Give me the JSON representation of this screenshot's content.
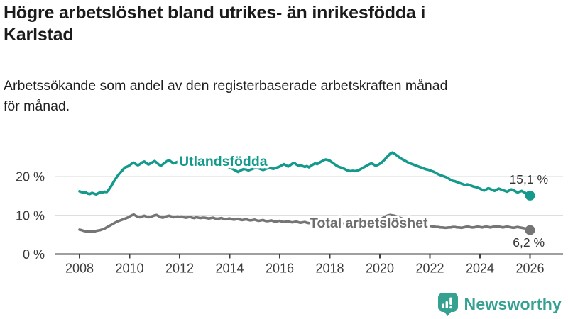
{
  "header": {
    "title_lines": [
      "Högre arbetslöshet bland utrikes- än inrikesfödda i",
      "Karlstad"
    ],
    "subtitle_lines": [
      "Arbetssökande som andel av den registerbaserade arbetskraften månad",
      "för månad."
    ]
  },
  "colors": {
    "accent_teal": "#149A8C",
    "series_gray": "#757575",
    "gray_label": "#6E6E6E",
    "title_text": "#1B1B1B",
    "axis_text": "#3B3B3B",
    "gridline": "#D9D9D9",
    "axis_line": "#3F3F3F",
    "end_value_text": "#333333",
    "logo_teal": "#35A191"
  },
  "logo": {
    "text": "Newsworthy",
    "icon": "newsworthy-pin-barchart-icon"
  },
  "chart_data": {
    "type": "line",
    "title": "Högre arbetslöshet bland utrikes- än inrikesfödda i Karlstad",
    "subtitle": "Arbetssökande som andel av den registerbaserade arbetskraften månad för månad.",
    "unit": "%",
    "frequency": "monthly",
    "x_start": {
      "year": 2008,
      "month": 1
    },
    "x_end": {
      "year": 2026,
      "month": 1
    },
    "x_tick_years": [
      2008,
      2010,
      2012,
      2014,
      2016,
      2018,
      2020,
      2022,
      2024,
      2026
    ],
    "y_ticks": [
      {
        "value": 0,
        "label": "0 %"
      },
      {
        "value": 10,
        "label": "10 %"
      },
      {
        "value": 20,
        "label": "20 %"
      }
    ],
    "ylim": [
      0,
      27
    ],
    "grid": true,
    "legend_position": "inline-labels",
    "series": [
      {
        "name": "Utlandsfödda",
        "color": "#149A8C",
        "label_color": "#149A8C",
        "end_label": "15,1 %",
        "end_value": 15.1,
        "values": [
          16.2,
          16.0,
          15.8,
          15.9,
          15.6,
          15.5,
          15.8,
          15.6,
          15.4,
          15.7,
          16.0,
          15.9,
          16.1,
          16.0,
          16.6,
          17.4,
          18.3,
          19.2,
          20.0,
          20.7,
          21.3,
          21.9,
          22.4,
          22.6,
          22.9,
          23.3,
          23.6,
          23.2,
          22.9,
          23.2,
          23.6,
          23.9,
          23.5,
          23.1,
          23.4,
          23.7,
          24.0,
          23.6,
          23.1,
          22.8,
          23.2,
          23.6,
          24.0,
          24.2,
          23.8,
          23.4,
          23.6,
          23.8,
          23.6,
          23.4,
          23.5,
          23.7,
          23.5,
          23.3,
          23.4,
          23.6,
          23.4,
          23.2,
          23.3,
          23.4,
          23.3,
          23.1,
          23.0,
          23.2,
          23.1,
          22.9,
          23.0,
          23.2,
          23.0,
          22.8,
          22.6,
          22.5,
          22.4,
          22.1,
          21.8,
          21.5,
          21.2,
          21.5,
          21.8,
          22.0,
          21.8,
          21.6,
          21.8,
          22.0,
          22.2,
          22.4,
          22.1,
          21.9,
          21.7,
          21.9,
          22.1,
          22.3,
          22.1,
          22.0,
          22.2,
          22.4,
          22.6,
          22.9,
          23.2,
          22.9,
          22.6,
          22.9,
          23.3,
          23.5,
          23.1,
          22.8,
          23.0,
          22.7,
          22.5,
          22.7,
          22.4,
          22.8,
          23.1,
          23.4,
          23.2,
          23.6,
          23.9,
          24.2,
          24.4,
          24.3,
          24.1,
          23.7,
          23.3,
          22.9,
          22.6,
          22.4,
          22.2,
          22.0,
          21.7,
          21.5,
          21.4,
          21.5,
          21.4,
          21.5,
          21.7,
          22.0,
          22.3,
          22.6,
          22.9,
          23.2,
          23.4,
          23.1,
          22.8,
          23.0,
          23.3,
          23.7,
          24.2,
          24.8,
          25.4,
          25.9,
          26.2,
          25.9,
          25.5,
          25.1,
          24.7,
          24.4,
          24.1,
          23.8,
          23.5,
          23.3,
          23.1,
          22.9,
          22.7,
          22.5,
          22.3,
          22.1,
          21.9,
          21.8,
          21.6,
          21.4,
          21.2,
          20.9,
          20.6,
          20.4,
          20.2,
          20.0,
          19.8,
          19.5,
          19.1,
          18.9,
          18.8,
          18.6,
          18.4,
          18.2,
          18.0,
          17.8,
          18.0,
          17.8,
          17.6,
          17.4,
          17.3,
          17.1,
          16.9,
          16.6,
          16.4,
          16.7,
          17.0,
          16.8,
          16.5,
          16.3,
          16.6,
          16.9,
          16.7,
          16.5,
          16.3,
          16.1,
          16.4,
          16.7,
          16.5,
          16.2,
          15.9,
          16.1,
          16.3,
          16.0,
          15.7,
          15.4,
          15.1
        ]
      },
      {
        "name": "Total arbetslöshet",
        "color": "#757575",
        "label_color": "#6E6E6E",
        "end_label": "6,2 %",
        "end_value": 6.2,
        "values": [
          6.3,
          6.2,
          6.0,
          5.9,
          5.8,
          5.8,
          5.9,
          5.8,
          6.0,
          6.1,
          6.2,
          6.4,
          6.6,
          6.9,
          7.2,
          7.5,
          7.8,
          8.1,
          8.4,
          8.6,
          8.8,
          9.0,
          9.2,
          9.4,
          9.7,
          10.0,
          10.2,
          9.9,
          9.6,
          9.5,
          9.7,
          9.9,
          9.7,
          9.5,
          9.6,
          9.8,
          10.0,
          10.1,
          9.8,
          9.5,
          9.4,
          9.6,
          9.8,
          9.9,
          9.7,
          9.5,
          9.6,
          9.7,
          9.6,
          9.7,
          9.5,
          9.4,
          9.5,
          9.6,
          9.4,
          9.3,
          9.5,
          9.4,
          9.3,
          9.4,
          9.4,
          9.3,
          9.2,
          9.3,
          9.4,
          9.2,
          9.1,
          9.2,
          9.3,
          9.1,
          9.0,
          9.1,
          9.2,
          9.0,
          8.9,
          9.0,
          9.1,
          8.9,
          8.8,
          8.9,
          9.0,
          8.8,
          8.7,
          8.8,
          8.9,
          8.7,
          8.6,
          8.7,
          8.8,
          8.6,
          8.5,
          8.6,
          8.7,
          8.5,
          8.4,
          8.5,
          8.6,
          8.4,
          8.3,
          8.4,
          8.5,
          8.3,
          8.2,
          8.3,
          8.4,
          8.2,
          8.1,
          8.2,
          8.3,
          8.1,
          8.0,
          8.1,
          8.2,
          8.0,
          7.9,
          8.0,
          8.1,
          7.9,
          7.8,
          7.9,
          8.0,
          7.9,
          7.8,
          7.9,
          8.0,
          7.9,
          7.8,
          7.9,
          8.0,
          7.9,
          7.8,
          7.9,
          8.0,
          7.9,
          7.8,
          7.9,
          8.0,
          8.1,
          8.2,
          8.3,
          8.4,
          8.5,
          8.6,
          8.8,
          9.0,
          9.2,
          9.5,
          9.8,
          10.0,
          10.1,
          10.0,
          9.9,
          9.7,
          9.5,
          9.3,
          9.1,
          8.9,
          8.7,
          8.5,
          8.3,
          8.1,
          8.0,
          7.9,
          7.8,
          7.7,
          7.6,
          7.5,
          7.4,
          7.3,
          7.2,
          7.1,
          7.0,
          7.0,
          6.9,
          6.9,
          6.8,
          6.8,
          6.9,
          6.9,
          7.0,
          7.0,
          6.9,
          6.9,
          6.8,
          6.9,
          7.0,
          7.1,
          7.0,
          6.9,
          6.9,
          7.0,
          7.1,
          7.0,
          6.9,
          7.0,
          7.1,
          7.0,
          6.9,
          7.0,
          7.1,
          7.2,
          7.1,
          7.0,
          6.9,
          7.0,
          7.1,
          7.0,
          6.9,
          6.8,
          6.9,
          7.0,
          6.9,
          6.8,
          6.7,
          6.6,
          6.4,
          6.2
        ]
      }
    ]
  }
}
